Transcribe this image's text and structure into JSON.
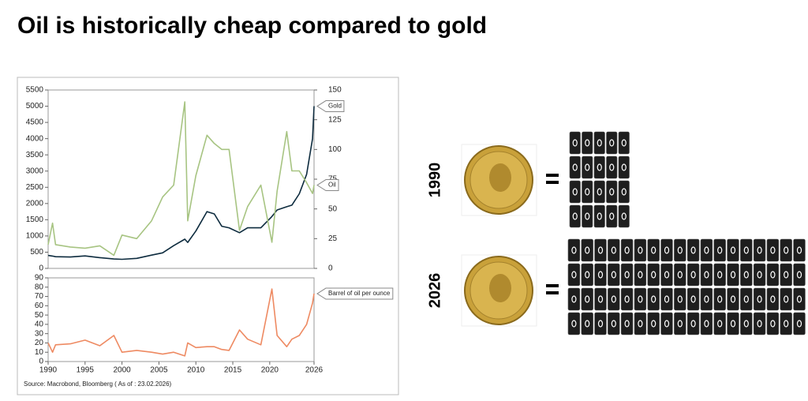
{
  "title": "Oil is historically cheap compared to gold",
  "source": "Source: Macrobond, Bloomberg ( As of : 23.02.2026)",
  "chart_data": [
    {
      "type": "line",
      "x": [
        1990,
        1990.6,
        1991,
        1993,
        1995,
        1997,
        1998.9,
        2000,
        2002,
        2004,
        2005.5,
        2007,
        2008.5,
        2008.9,
        2010,
        2011.5,
        2012.5,
        2013.5,
        2014.5,
        2015.9,
        2017,
        2018.8,
        2020.3,
        2021,
        2022.3,
        2023,
        2024,
        2025,
        2025.8,
        2026
      ],
      "xlim": [
        1990,
        2026
      ],
      "ylim": [
        0,
        5500
      ],
      "yticks": [
        0,
        500,
        1000,
        1500,
        2000,
        2500,
        3000,
        3500,
        4000,
        4500,
        5000,
        5500
      ],
      "y2lim": [
        0,
        150
      ],
      "y2ticks": [
        0,
        25,
        50,
        75,
        100,
        125,
        150
      ],
      "series": [
        {
          "name": "Gold",
          "color": "#0d2b3e",
          "values": [
            400,
            380,
            360,
            350,
            385,
            330,
            290,
            280,
            310,
            410,
            480,
            700,
            900,
            800,
            1150,
            1750,
            1680,
            1300,
            1250,
            1100,
            1250,
            1250,
            1600,
            1800,
            1900,
            1950,
            2300,
            2900,
            4000,
            5000
          ]
        },
        {
          "name": "Oil",
          "color": "#a7c482",
          "axis": "y2",
          "values": [
            20,
            38,
            20,
            18,
            17,
            19,
            11,
            28,
            25,
            40,
            60,
            70,
            140,
            40,
            78,
            112,
            105,
            100,
            100,
            32,
            52,
            70,
            22,
            65,
            115,
            82,
            82,
            72,
            63,
            70
          ]
        }
      ]
    },
    {
      "type": "line",
      "x": [
        1990,
        1990.6,
        1991,
        1993,
        1995,
        1997,
        1998.9,
        2000,
        2002,
        2004,
        2005.5,
        2007,
        2008.5,
        2008.9,
        2010,
        2011.5,
        2012.5,
        2013.5,
        2014.5,
        2015.9,
        2017,
        2018.8,
        2020.3,
        2021,
        2022.3,
        2023,
        2024,
        2025,
        2025.8,
        2026
      ],
      "xlim": [
        1990,
        2026
      ],
      "xticks": [
        1990,
        1995,
        2000,
        2005,
        2010,
        2015,
        2020,
        2026
      ],
      "ylim": [
        0,
        90
      ],
      "yticks": [
        0,
        10,
        20,
        30,
        40,
        50,
        60,
        70,
        80,
        90
      ],
      "series": [
        {
          "name": "Barrel of oil per ounce",
          "color": "#ee8a62",
          "values": [
            20,
            10,
            18,
            19,
            23,
            17,
            28,
            10,
            12,
            10,
            8,
            10,
            6,
            20,
            15,
            16,
            16,
            13,
            12,
            34,
            24,
            18,
            78,
            28,
            16,
            24,
            28,
            40,
            63,
            73
          ]
        }
      ]
    }
  ],
  "comparison": [
    {
      "year": "1990",
      "barrels": 20
    },
    {
      "year": "2026",
      "barrels": 72
    }
  ]
}
